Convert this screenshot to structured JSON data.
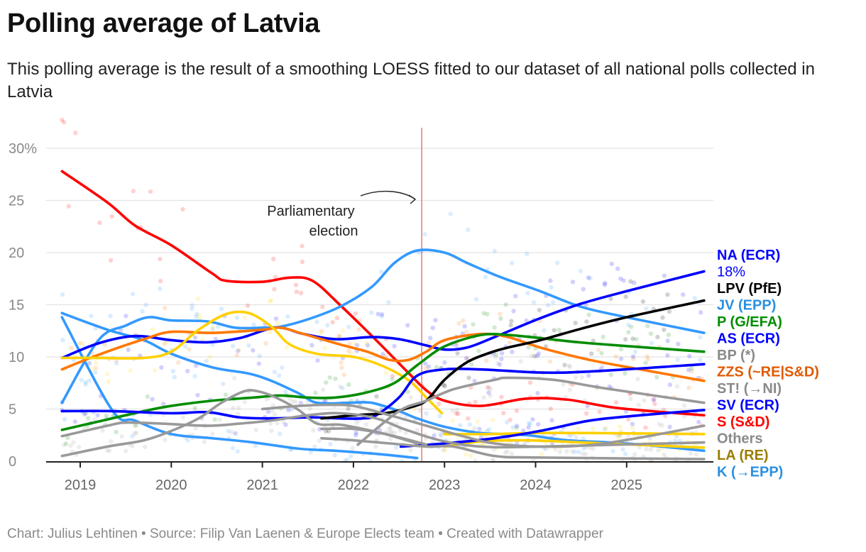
{
  "title": "Polling average of Latvia",
  "subtitle": "This polling average is the result of a smoothing LOESS fitted to our dataset of all national polls collected in Latvia",
  "footer": "Chart: Julius Lehtinen • Source: Filip Van Laenen & Europe Elects team • Created with Datawrapper",
  "chart_data": {
    "type": "line",
    "title": "Polling average of Latvia",
    "xlim": [
      2018.8,
      2025.85
    ],
    "ylim": [
      0,
      30
    ],
    "y_unit": "%",
    "y_ticks": [
      "0",
      "5",
      "10",
      "15",
      "20",
      "25",
      "30%"
    ],
    "y_tick_values": [
      0,
      5,
      10,
      15,
      20,
      25,
      30
    ],
    "x_ticks": [
      "2019",
      "2020",
      "2021",
      "2022",
      "2023",
      "2024",
      "2025"
    ],
    "x_tick_values": [
      2019,
      2020,
      2021,
      2022,
      2023,
      2024,
      2025
    ],
    "grid": true,
    "poll_dots": true,
    "annotation": {
      "text_line1": "Parliamentary",
      "text_line2": "election",
      "x": 2022.75,
      "line_color": "#e06666"
    },
    "highlight_value_label": "18%",
    "series": [
      {
        "name": "S (S&D)",
        "color": "#ff0000",
        "points": [
          [
            2018.8,
            27.8
          ],
          [
            2019.3,
            24.8
          ],
          [
            2019.6,
            22.6
          ],
          [
            2020.0,
            20.7
          ],
          [
            2020.45,
            18.0
          ],
          [
            2020.6,
            17.3
          ],
          [
            2021.0,
            17.2
          ],
          [
            2021.3,
            17.6
          ],
          [
            2021.55,
            17.3
          ],
          [
            2021.85,
            15.0
          ],
          [
            2022.25,
            11.6
          ],
          [
            2022.6,
            8.5
          ],
          [
            2022.8,
            6.8
          ],
          [
            2023.0,
            5.8
          ],
          [
            2023.4,
            5.3
          ],
          [
            2023.9,
            6.0
          ],
          [
            2024.35,
            5.9
          ],
          [
            2024.9,
            5.1
          ],
          [
            2025.85,
            4.4
          ]
        ]
      },
      {
        "name": "JV (EPP)",
        "color": "#3399ff",
        "points": [
          [
            2018.8,
            5.6
          ],
          [
            2019.2,
            11.6
          ],
          [
            2019.5,
            13.0
          ],
          [
            2019.75,
            13.8
          ],
          [
            2020.0,
            13.5
          ],
          [
            2020.4,
            13.4
          ],
          [
            2020.7,
            12.8
          ],
          [
            2021.0,
            12.8
          ],
          [
            2021.2,
            12.9
          ],
          [
            2021.5,
            13.6
          ],
          [
            2021.85,
            14.8
          ],
          [
            2022.2,
            16.7
          ],
          [
            2022.45,
            19.0
          ],
          [
            2022.7,
            20.2
          ],
          [
            2023.0,
            20.0
          ],
          [
            2023.25,
            19.0
          ],
          [
            2023.6,
            17.7
          ],
          [
            2024.05,
            16.3
          ],
          [
            2024.5,
            14.8
          ],
          [
            2025.0,
            13.8
          ],
          [
            2025.85,
            12.3
          ]
        ]
      },
      {
        "name": "",
        "color": "#3399ff",
        "points": [
          [
            2018.8,
            14.2
          ],
          [
            2019.3,
            12.6
          ],
          [
            2019.7,
            11.6
          ],
          [
            2020.0,
            10.3
          ],
          [
            2020.45,
            9.0
          ],
          [
            2020.85,
            8.4
          ],
          [
            2021.1,
            7.7
          ],
          [
            2021.4,
            6.5
          ],
          [
            2021.6,
            5.6
          ],
          [
            2021.95,
            5.6
          ],
          [
            2022.2,
            5.6
          ],
          [
            2022.5,
            4.8
          ],
          [
            2022.7,
            4.1
          ],
          [
            2023.0,
            3.3
          ],
          [
            2023.4,
            2.7
          ],
          [
            2023.9,
            2.5
          ],
          [
            2024.35,
            2.0
          ],
          [
            2025.0,
            1.7
          ],
          [
            2025.85,
            1.0
          ]
        ]
      },
      {
        "name": "K (→EPP)",
        "color": "#3399ff",
        "points": [
          [
            2018.8,
            13.8
          ],
          [
            2019.35,
            4.9
          ],
          [
            2019.6,
            3.9
          ],
          [
            2020.0,
            2.6
          ],
          [
            2020.45,
            2.2
          ],
          [
            2020.9,
            1.8
          ],
          [
            2021.4,
            1.2
          ],
          [
            2021.8,
            1.0
          ],
          [
            2022.25,
            0.7
          ],
          [
            2022.7,
            0.3
          ]
        ]
      },
      {
        "name": "NA (ECR)",
        "color": "#0000ff",
        "points": [
          [
            2018.8,
            9.9
          ],
          [
            2019.2,
            11.3
          ],
          [
            2019.6,
            12.0
          ],
          [
            2020.0,
            11.6
          ],
          [
            2020.4,
            11.4
          ],
          [
            2020.75,
            11.8
          ],
          [
            2021.15,
            12.8
          ],
          [
            2021.45,
            12.2
          ],
          [
            2021.8,
            11.7
          ],
          [
            2022.2,
            11.9
          ],
          [
            2022.5,
            11.7
          ],
          [
            2022.8,
            11.1
          ],
          [
            2023.0,
            10.7
          ],
          [
            2023.25,
            10.9
          ],
          [
            2023.55,
            11.9
          ],
          [
            2024.05,
            13.7
          ],
          [
            2024.5,
            15.1
          ],
          [
            2025.0,
            16.3
          ],
          [
            2025.85,
            18.2
          ]
        ]
      },
      {
        "name": "ZZS (~RE|S&D)",
        "color": "#ff7700",
        "points": [
          [
            2018.8,
            8.8
          ],
          [
            2019.2,
            10.2
          ],
          [
            2019.7,
            11.7
          ],
          [
            2020.0,
            12.4
          ],
          [
            2020.45,
            12.3
          ],
          [
            2021.0,
            12.6
          ],
          [
            2021.2,
            12.8
          ],
          [
            2021.45,
            12.2
          ],
          [
            2021.85,
            11.2
          ],
          [
            2022.15,
            10.5
          ],
          [
            2022.4,
            9.7
          ],
          [
            2022.6,
            9.7
          ],
          [
            2022.8,
            10.5
          ],
          [
            2023.0,
            11.6
          ],
          [
            2023.4,
            12.2
          ],
          [
            2023.7,
            11.9
          ],
          [
            2024.05,
            10.9
          ],
          [
            2024.6,
            9.7
          ],
          [
            2025.15,
            8.8
          ],
          [
            2025.85,
            7.7
          ]
        ]
      },
      {
        "name": "",
        "color": "#ffd000",
        "points": [
          [
            2018.8,
            9.9
          ],
          [
            2019.2,
            9.9
          ],
          [
            2019.7,
            9.9
          ],
          [
            2020.0,
            10.5
          ],
          [
            2020.3,
            12.6
          ],
          [
            2020.6,
            14.1
          ],
          [
            2020.85,
            14.2
          ],
          [
            2021.1,
            12.9
          ],
          [
            2021.3,
            11.2
          ],
          [
            2021.6,
            10.3
          ],
          [
            2022.0,
            10.0
          ],
          [
            2022.3,
            9.2
          ],
          [
            2022.6,
            7.8
          ],
          [
            2022.8,
            6.1
          ],
          [
            2022.97,
            4.6
          ]
        ]
      },
      {
        "name": "",
        "color": "#ffd000",
        "points": [
          [
            2023.0,
            2.6
          ],
          [
            2023.5,
            2.6
          ],
          [
            2024.0,
            2.7
          ],
          [
            2024.6,
            2.7
          ],
          [
            2025.85,
            2.6
          ]
        ]
      },
      {
        "name": "LA (RE)",
        "color": "#ffd000",
        "points": [
          [
            2023.0,
            1.4
          ],
          [
            2023.4,
            1.9
          ],
          [
            2023.9,
            2.0
          ],
          [
            2024.5,
            1.8
          ],
          [
            2025.85,
            1.3
          ]
        ]
      },
      {
        "name": "P (G/EFA)",
        "color": "#008c00",
        "points": [
          [
            2018.8,
            3.0
          ],
          [
            2019.2,
            3.8
          ],
          [
            2019.7,
            4.8
          ],
          [
            2020.0,
            5.3
          ],
          [
            2020.45,
            5.8
          ],
          [
            2020.9,
            6.1
          ],
          [
            2021.2,
            6.3
          ],
          [
            2021.5,
            6.1
          ],
          [
            2021.8,
            6.1
          ],
          [
            2022.15,
            6.6
          ],
          [
            2022.45,
            7.5
          ],
          [
            2022.7,
            9.2
          ],
          [
            2023.0,
            11.0
          ],
          [
            2023.4,
            12.1
          ],
          [
            2023.7,
            12.1
          ],
          [
            2024.05,
            11.8
          ],
          [
            2024.6,
            11.3
          ],
          [
            2025.85,
            10.5
          ]
        ]
      },
      {
        "name": "AS (ECR)",
        "color": "#0000ff",
        "points": [
          [
            2018.8,
            4.8
          ],
          [
            2019.35,
            4.8
          ],
          [
            2020.0,
            4.6
          ],
          [
            2020.4,
            4.7
          ],
          [
            2020.75,
            4.2
          ],
          [
            2021.1,
            4.1
          ],
          [
            2021.55,
            4.2
          ],
          [
            2021.85,
            4.1
          ],
          [
            2022.1,
            4.1
          ],
          [
            2022.25,
            4.4
          ],
          [
            2022.5,
            6.1
          ],
          [
            2022.7,
            8.2
          ],
          [
            2023.0,
            8.8
          ],
          [
            2023.4,
            8.8
          ],
          [
            2024.05,
            8.5
          ],
          [
            2024.6,
            8.6
          ],
          [
            2025.85,
            9.3
          ]
        ]
      },
      {
        "name": "SV (ECR)",
        "color": "#0000ff",
        "points": [
          [
            2022.52,
            1.4
          ],
          [
            2023.0,
            1.7
          ],
          [
            2023.55,
            2.2
          ],
          [
            2024.05,
            2.9
          ],
          [
            2024.6,
            3.9
          ],
          [
            2025.15,
            4.4
          ],
          [
            2025.85,
            4.9
          ]
        ]
      },
      {
        "name": "LPV (PfE)",
        "color": "#000000",
        "points": [
          [
            2021.65,
            4.1
          ],
          [
            2022.0,
            4.4
          ],
          [
            2022.35,
            4.6
          ],
          [
            2022.6,
            5.1
          ],
          [
            2022.8,
            5.8
          ],
          [
            2023.0,
            7.8
          ],
          [
            2023.25,
            9.5
          ],
          [
            2023.5,
            10.4
          ],
          [
            2023.7,
            10.9
          ],
          [
            2024.05,
            11.6
          ],
          [
            2024.5,
            12.7
          ],
          [
            2025.0,
            13.8
          ],
          [
            2025.85,
            15.4
          ]
        ]
      },
      {
        "name": "",
        "color": "#999999",
        "points": [
          [
            2018.8,
            0.5
          ],
          [
            2019.3,
            1.4
          ],
          [
            2019.7,
            2.0
          ],
          [
            2020.0,
            2.9
          ],
          [
            2020.3,
            4.1
          ],
          [
            2020.55,
            5.6
          ],
          [
            2020.8,
            6.7
          ],
          [
            2020.95,
            6.7
          ],
          [
            2021.15,
            6.1
          ],
          [
            2021.4,
            4.9
          ],
          [
            2021.6,
            3.6
          ],
          [
            2021.85,
            3.5
          ],
          [
            2022.1,
            3.1
          ],
          [
            2022.35,
            2.6
          ],
          [
            2022.7,
            1.7
          ]
        ]
      },
      {
        "name": "",
        "color": "#999999",
        "points": [
          [
            2018.8,
            2.4
          ],
          [
            2019.3,
            3.4
          ],
          [
            2019.5,
            3.7
          ],
          [
            2019.9,
            3.6
          ],
          [
            2020.4,
            3.4
          ],
          [
            2020.75,
            3.6
          ],
          [
            2021.1,
            3.9
          ],
          [
            2021.5,
            4.4
          ],
          [
            2021.85,
            4.6
          ],
          [
            2022.25,
            4.1
          ],
          [
            2022.55,
            3.1
          ],
          [
            2022.95,
            2.0
          ],
          [
            2023.4,
            1.4
          ],
          [
            2024.05,
            1.4
          ],
          [
            2025.85,
            1.8
          ]
        ]
      },
      {
        "name": "Others",
        "color": "#999999",
        "points": [
          [
            2021.0,
            5.0
          ],
          [
            2021.4,
            5.3
          ],
          [
            2021.7,
            5.4
          ],
          [
            2022.0,
            5.3
          ],
          [
            2022.4,
            4.4
          ],
          [
            2022.8,
            3.4
          ],
          [
            2023.2,
            2.4
          ],
          [
            2023.55,
            1.7
          ],
          [
            2024.05,
            1.4
          ],
          [
            2024.75,
            1.7
          ],
          [
            2025.85,
            3.4
          ]
        ]
      },
      {
        "name": "ST! (→NI)",
        "color": "#999999",
        "points": [
          [
            2022.05,
            1.6
          ],
          [
            2022.5,
            4.8
          ],
          [
            2022.8,
            5.8
          ],
          [
            2023.1,
            6.9
          ],
          [
            2023.55,
            7.8
          ],
          [
            2023.7,
            8.0
          ],
          [
            2024.2,
            7.8
          ],
          [
            2024.75,
            7.0
          ],
          [
            2025.85,
            5.6
          ]
        ]
      },
      {
        "name": "",
        "color": "#999999",
        "points": [
          [
            2021.65,
            2.2
          ],
          [
            2022.0,
            2.0
          ],
          [
            2022.4,
            1.7
          ],
          [
            2022.8,
            1.4
          ],
          [
            2023.1,
            1.4
          ],
          [
            2023.55,
            0.5
          ],
          [
            2024.05,
            0.35
          ],
          [
            2025.85,
            0.2
          ]
        ]
      },
      {
        "name": "",
        "color": "#999999",
        "points": [
          [
            2021.65,
            3.1
          ],
          [
            2022.0,
            3.1
          ],
          [
            2022.35,
            2.6
          ],
          [
            2022.8,
            1.6
          ]
        ]
      }
    ],
    "end_labels": [
      {
        "text": "NA (ECR)",
        "color": "#0000ff"
      },
      {
        "text": "LPV (PfE)",
        "color": "#000000"
      },
      {
        "text": "JV (EPP)",
        "color": "#2a8fe0"
      },
      {
        "text": "P (G/EFA)",
        "color": "#008c00"
      },
      {
        "text": "AS (ECR)",
        "color": "#0000ff"
      },
      {
        "text": "BP (*)",
        "color": "#8a8a8a"
      },
      {
        "text": "ZZS (~RE|S&D)",
        "color": "#e05a00"
      },
      {
        "text": "ST! (→NI)",
        "color": "#8a8a8a"
      },
      {
        "text": "SV (ECR)",
        "color": "#0000ff"
      },
      {
        "text": "S (S&D)",
        "color": "#ff0000"
      },
      {
        "text": "Others",
        "color": "#8a8a8a"
      },
      {
        "text": "LA (RE)",
        "color": "#9a7d00"
      },
      {
        "text": "K (→EPP)",
        "color": "#2a8fe0"
      }
    ]
  }
}
